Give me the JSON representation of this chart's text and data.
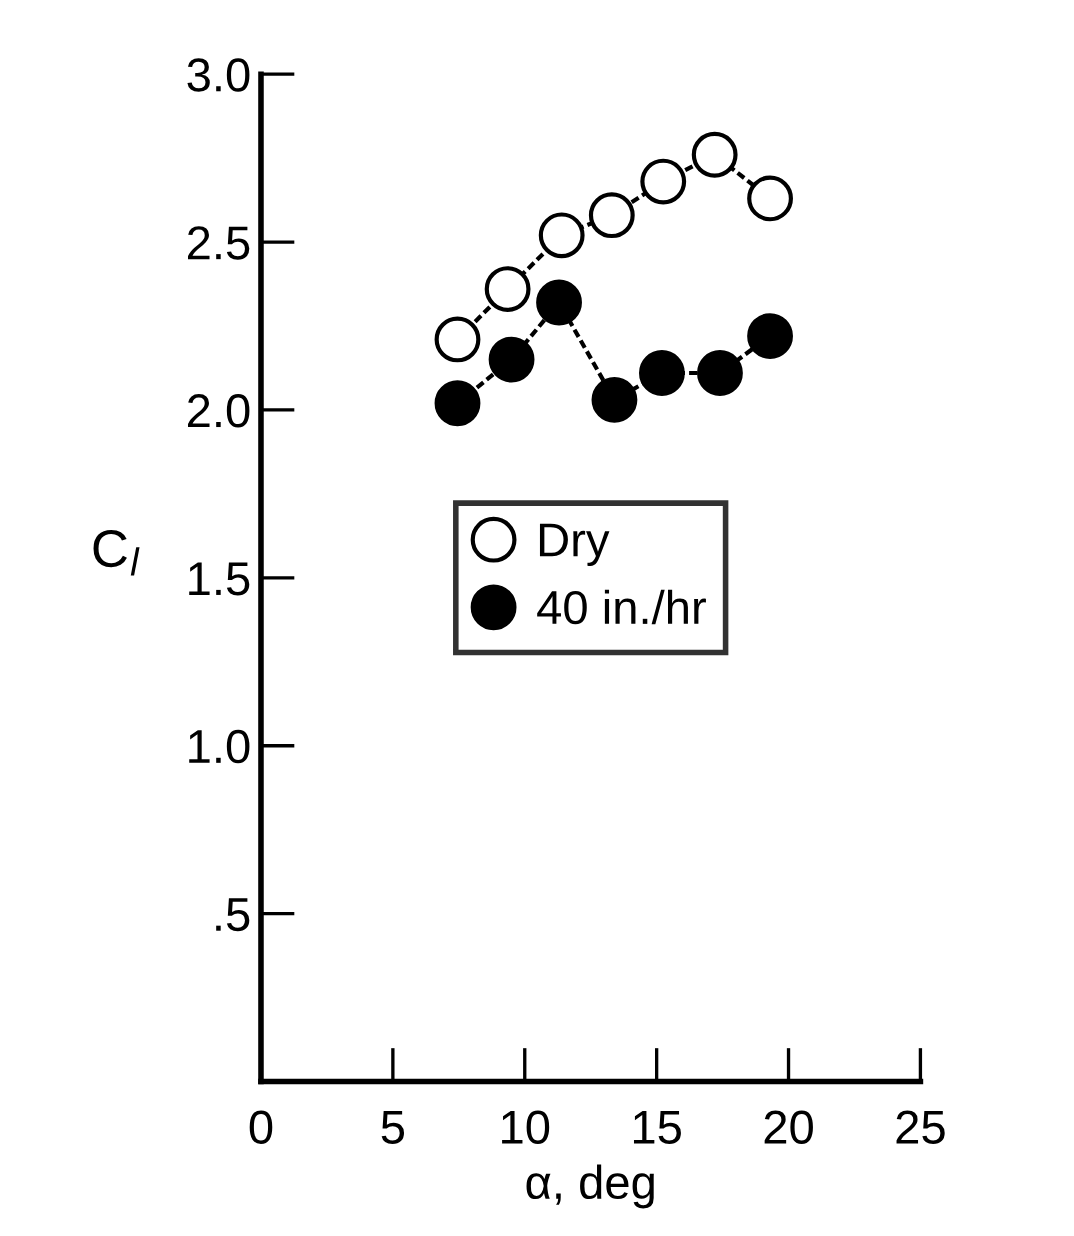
{
  "chart_data": {
    "type": "line",
    "xlabel": "α, deg",
    "ylabel": "C$_{l}$",
    "xlim": [
      0,
      25
    ],
    "ylim": [
      0,
      3.0
    ],
    "xticks": [
      0,
      5,
      10,
      15,
      20,
      25
    ],
    "yticks": [
      {
        "value": 0,
        "label": null
      },
      {
        "value": 0.5,
        "label": ".5"
      },
      {
        "value": 1.0,
        "label": "1.0"
      },
      {
        "value": 1.5,
        "label": "1.5"
      },
      {
        "value": 2.0,
        "label": "2.0"
      },
      {
        "value": 2.5,
        "label": "2.5"
      },
      {
        "value": 3.0,
        "label": "3.0"
      }
    ],
    "grid": false,
    "legend": "center",
    "marker": "circle",
    "line_style": "dashed",
    "series": [
      {
        "name": "Dry",
        "color": "#ffffff",
        "x": [
          7.45,
          9.35,
          11.4,
          13.3,
          15.25,
          17.2,
          19.3
        ],
        "values": [
          2.21,
          2.36,
          2.52,
          2.58,
          2.68,
          2.76,
          2.63
        ]
      },
      {
        "name": "40 in./hr",
        "color": "#000000",
        "x": [
          7.45,
          9.5,
          11.3,
          13.4,
          15.2,
          17.4,
          19.3
        ],
        "values": [
          2.02,
          2.15,
          2.32,
          2.03,
          2.11,
          2.11,
          2.22
        ]
      }
    ]
  }
}
